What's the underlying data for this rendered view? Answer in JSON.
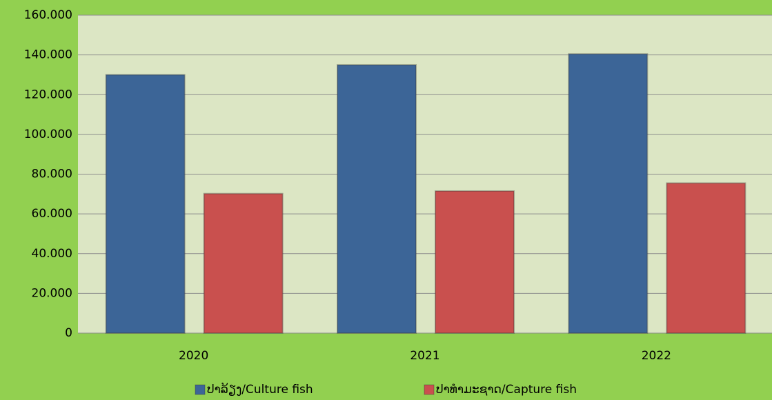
{
  "chart_data": {
    "type": "bar",
    "categories": [
      "2020",
      "2021",
      "2022"
    ],
    "series": [
      {
        "name": "ປາລ້ຽງ/Culture fish",
        "color": "#3c6597",
        "values": [
          130000,
          135000,
          140500
        ]
      },
      {
        "name": "ປາທຳມະຊາດ/Capture fish",
        "color": "#c9504e",
        "values": [
          70200,
          71500,
          75500
        ]
      }
    ],
    "ylim": [
      0,
      160000
    ],
    "yticks": [
      0,
      {
        "value": 20000,
        "label": "20.000"
      },
      {
        "value": 40000,
        "label": "40.000"
      },
      {
        "value": 60000,
        "label": "60.000"
      },
      {
        "value": 80000,
        "label": "80.000"
      },
      {
        "value": 100000,
        "label": "100.000"
      },
      {
        "value": 120000,
        "label": "120.000"
      },
      {
        "value": 140000,
        "label": "140.000"
      },
      {
        "value": 160000,
        "label": "160.000"
      }
    ],
    "grid": true,
    "legend": "bottom"
  }
}
